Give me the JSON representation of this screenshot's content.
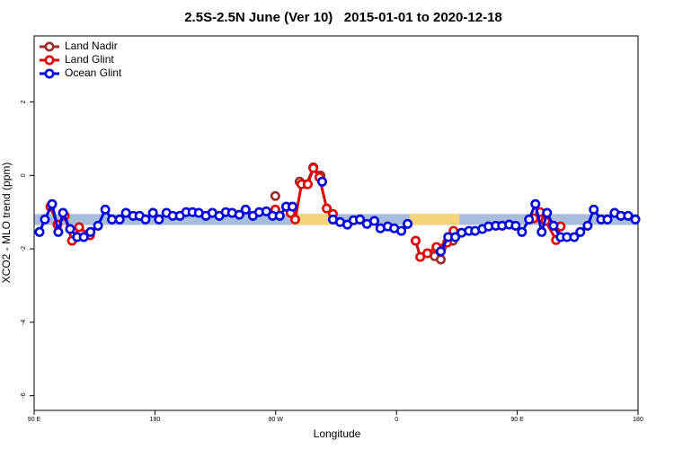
{
  "chart_data": {
    "type": "line",
    "title": "2.5S-2.5N June (Ver 10)   2015-01-01 to 2020-12-18",
    "x_label": "Longitude",
    "y_label": "XCO2 - MLO trend (ppm)",
    "xlim": [
      90,
      540
    ],
    "ylim": [
      -6.4,
      3.8
    ],
    "xticks": [
      {
        "value": 90,
        "label": "90 E"
      },
      {
        "value": 180,
        "label": "180"
      },
      {
        "value": 270,
        "label": "90 W"
      },
      {
        "value": 360,
        "label": "0"
      },
      {
        "value": 450,
        "label": "90 E"
      },
      {
        "value": 540,
        "label": "180"
      }
    ],
    "yticks": [
      2,
      0,
      -2,
      -4,
      -6
    ],
    "legend": "top-left",
    "band": {
      "y": [
        -1.35,
        -1.05
      ],
      "color": "#a9bddc",
      "land_x": [
        [
          282,
          313
        ],
        [
          370,
          407
        ]
      ],
      "land_color": "#f5d47c"
    },
    "series": [
      {
        "name": "Land Nadir",
        "color": "#9b2d2d",
        "x": [
          269.7,
          null,
          287.8,
          293.2,
          298,
          303.3,
          null,
          388.4,
          393,
          398.5,
          402
        ],
        "values": [
          -0.56,
          null,
          -0.17,
          -0.24,
          0.22,
          0,
          null,
          -2.2,
          -2.29,
          -1.78,
          -1.78
        ]
      },
      {
        "name": "Land Glint",
        "color": "#e00000",
        "x": [
          102.1,
          107.4,
          112.8,
          118.2,
          123.5,
          131.6,
          null,
          269.7,
          null,
          281.1,
          284.5,
          289.2,
          293.9,
          298,
          302.6,
          308,
          312.6,
          null,
          374.3,
          377.7,
          383,
          389.8,
          397.8,
          402.5,
          null,
          462.2,
          467,
          471,
          478.9,
          482.3
        ],
        "values": [
          -0.85,
          -1.34,
          -1.1,
          -1.78,
          -1.41,
          -1.63,
          null,
          -0.93,
          null,
          -1.02,
          -1.2,
          -0.24,
          -0.24,
          0.2,
          -0.05,
          -0.9,
          -1.05,
          null,
          -1.78,
          -2.22,
          -2.12,
          -1.95,
          -1.83,
          -1.51,
          null,
          -1.17,
          -1.0,
          -1.24,
          -1.76,
          -1.39
        ]
      },
      {
        "name": "Ocean Glint",
        "color": "#0000e0",
        "x": [
          94,
          98,
          103.4,
          108,
          111.5,
          116.8,
          122,
          127,
          132,
          137.6,
          143,
          148,
          153.7,
          158.4,
          163.8,
          168.5,
          173,
          178.5,
          183,
          188.6,
          193.3,
          198.6,
          203.3,
          208,
          212.7,
          218,
          222.8,
          228,
          232.8,
          237.5,
          242.9,
          247.6,
          253,
          257.7,
          263,
          267.7,
          273,
          277.8,
          282.5,
          null,
          304.6,
          null,
          312.6,
          318,
          323.4,
          328,
          332.8,
          338,
          343.5,
          348,
          353.5,
          358.3,
          363.6,
          368.3,
          null,
          393,
          398.5,
          403.8,
          408.5,
          414,
          418.6,
          424,
          428.6,
          434,
          438.7,
          444,
          448.8,
          453.5,
          458.8,
          463.5,
          468.2,
          472.2,
          477,
          482.3,
          487,
          492.4,
          497,
          502.4,
          507,
          512.5,
          517.2,
          522.5,
          527.2,
          532.6,
          538
        ],
        "values": [
          -1.54,
          -1.2,
          -0.78,
          -1.54,
          -1.02,
          -1.46,
          -1.68,
          -1.68,
          -1.54,
          -1.37,
          -0.93,
          -1.2,
          -1.2,
          -1.02,
          -1.1,
          -1.1,
          -1.2,
          -1.02,
          -1.2,
          -1.02,
          -1.1,
          -1.1,
          -1.0,
          -1.0,
          -1.02,
          -1.1,
          -1.02,
          -1.1,
          -1.0,
          -1.02,
          -1.07,
          -0.93,
          -1.1,
          -1.0,
          -0.98,
          -1.1,
          -1.1,
          -0.85,
          -0.85,
          null,
          -0.17,
          null,
          -1.2,
          -1.27,
          -1.34,
          -1.22,
          -1.2,
          -1.32,
          -1.24,
          -1.44,
          -1.39,
          -1.44,
          -1.51,
          -1.32,
          null,
          -2.07,
          -1.68,
          -1.68,
          -1.56,
          -1.51,
          -1.51,
          -1.46,
          -1.39,
          -1.37,
          -1.37,
          -1.34,
          -1.37,
          -1.54,
          -1.2,
          -0.78,
          -1.54,
          -1.02,
          -1.37,
          -1.68,
          -1.68,
          -1.68,
          -1.54,
          -1.37,
          -0.93,
          -1.2,
          -1.2,
          -1.02,
          -1.1,
          -1.1,
          -1.2
        ]
      }
    ]
  }
}
